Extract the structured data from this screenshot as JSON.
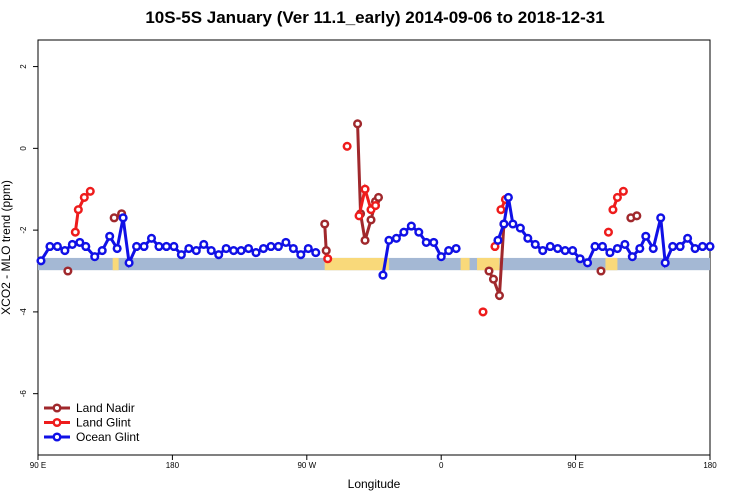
{
  "chart_data": {
    "type": "line",
    "title": "10S-5S January (Ver 11.1_early)   2014-09-06 to 2018-12-31",
    "xlabel": "Longitude",
    "ylabel": "XCO2 - MLO trend (ppm)",
    "x_ticks": [
      {
        "value": 90,
        "label": "90 E"
      },
      {
        "value": 180,
        "label": "180"
      },
      {
        "value": 270,
        "label": "90 W"
      },
      {
        "value": 360,
        "label": "0"
      },
      {
        "value": 450,
        "label": "90 E"
      },
      {
        "value": 540,
        "label": "180"
      }
    ],
    "y_ticks": [
      {
        "value": 2,
        "label": "2"
      },
      {
        "value": 0,
        "label": "0"
      },
      {
        "value": -2,
        "label": "-2"
      },
      {
        "value": -4,
        "label": "-4"
      },
      {
        "value": -6,
        "label": "-6"
      }
    ],
    "xlim": [
      90,
      540
    ],
    "ylim": [
      -7.5,
      2.65
    ],
    "band": {
      "y_top": -2.68,
      "y_bottom": -2.98,
      "color": "#a4b8d4",
      "land_color": "#f9d97a"
    },
    "land_segments": [
      [
        140,
        144
      ],
      [
        282,
        325
      ],
      [
        373,
        379
      ],
      [
        384,
        399
      ],
      [
        470,
        478
      ]
    ],
    "series": [
      {
        "name": "Land Nadir",
        "color": "#a0282c",
        "segments": [
          [
            [
              110,
              -3.0
            ]
          ],
          [
            [
              141,
              -1.7
            ],
            [
              146,
              -1.6
            ]
          ],
          [
            [
              282,
              -1.85
            ],
            [
              283,
              -2.5
            ]
          ],
          [
            [
              304,
              0.6
            ],
            [
              306,
              -1.6
            ],
            [
              309,
              -2.25
            ],
            [
              313,
              -1.75
            ],
            [
              316,
              -1.3
            ],
            [
              318,
              -1.2
            ]
          ],
          [
            [
              392,
              -3.0
            ],
            [
              395,
              -3.2
            ],
            [
              399,
              -3.6
            ],
            [
              402,
              -1.85
            ]
          ],
          [
            [
              467,
              -3.0
            ]
          ],
          [
            [
              487,
              -1.7
            ],
            [
              491,
              -1.65
            ]
          ]
        ]
      },
      {
        "name": "Land Glint",
        "color": "#ee1c1c",
        "segments": [
          [
            [
              115,
              -2.05
            ],
            [
              117,
              -1.5
            ],
            [
              121,
              -1.2
            ],
            [
              125,
              -1.05
            ]
          ],
          [
            [
              284,
              -2.7
            ]
          ],
          [
            [
              297,
              0.05
            ]
          ],
          [
            [
              305,
              -1.65
            ],
            [
              309,
              -1.0
            ],
            [
              313,
              -1.5
            ],
            [
              316,
              -1.4
            ]
          ],
          [
            [
              388,
              -4.0
            ]
          ],
          [
            [
              396,
              -2.4
            ]
          ],
          [
            [
              400,
              -1.5
            ],
            [
              403,
              -1.25
            ]
          ],
          [
            [
              472,
              -2.05
            ]
          ],
          [
            [
              475,
              -1.5
            ],
            [
              478,
              -1.2
            ],
            [
              482,
              -1.05
            ]
          ]
        ]
      },
      {
        "name": "Ocean Glint",
        "color": "#1010e6",
        "segments": [
          [
            [
              92,
              -2.75
            ],
            [
              98,
              -2.4
            ],
            [
              103,
              -2.4
            ],
            [
              108,
              -2.5
            ],
            [
              113,
              -2.35
            ],
            [
              118,
              -2.3
            ],
            [
              122,
              -2.4
            ],
            [
              128,
              -2.65
            ],
            [
              133,
              -2.5
            ],
            [
              138,
              -2.15
            ],
            [
              143,
              -2.45
            ],
            [
              147,
              -1.7
            ],
            [
              151,
              -2.8
            ],
            [
              156,
              -2.4
            ],
            [
              161,
              -2.4
            ],
            [
              166,
              -2.2
            ],
            [
              171,
              -2.4
            ],
            [
              176,
              -2.4
            ],
            [
              181,
              -2.4
            ],
            [
              186,
              -2.6
            ],
            [
              191,
              -2.45
            ],
            [
              196,
              -2.5
            ],
            [
              201,
              -2.35
            ],
            [
              206,
              -2.5
            ],
            [
              211,
              -2.6
            ],
            [
              216,
              -2.45
            ],
            [
              221,
              -2.5
            ],
            [
              226,
              -2.5
            ],
            [
              231,
              -2.45
            ],
            [
              236,
              -2.55
            ],
            [
              241,
              -2.45
            ],
            [
              246,
              -2.4
            ],
            [
              251,
              -2.4
            ],
            [
              256,
              -2.3
            ],
            [
              261,
              -2.45
            ],
            [
              266,
              -2.6
            ],
            [
              271,
              -2.45
            ],
            [
              276,
              -2.55
            ]
          ],
          [
            [
              321,
              -3.1
            ],
            [
              325,
              -2.25
            ],
            [
              330,
              -2.2
            ],
            [
              335,
              -2.05
            ],
            [
              340,
              -1.9
            ],
            [
              345,
              -2.05
            ],
            [
              350,
              -2.3
            ],
            [
              355,
              -2.3
            ],
            [
              360,
              -2.65
            ],
            [
              365,
              -2.5
            ],
            [
              370,
              -2.45
            ]
          ],
          [
            [
              398,
              -2.25
            ],
            [
              402,
              -1.85
            ],
            [
              405,
              -1.2
            ],
            [
              408,
              -1.85
            ],
            [
              413,
              -1.95
            ],
            [
              418,
              -2.2
            ],
            [
              423,
              -2.35
            ],
            [
              428,
              -2.5
            ],
            [
              433,
              -2.4
            ],
            [
              438,
              -2.45
            ],
            [
              443,
              -2.5
            ],
            [
              448,
              -2.5
            ],
            [
              453,
              -2.7
            ],
            [
              458,
              -2.8
            ],
            [
              463,
              -2.4
            ],
            [
              468,
              -2.4
            ],
            [
              473,
              -2.55
            ],
            [
              478,
              -2.45
            ],
            [
              483,
              -2.35
            ],
            [
              488,
              -2.65
            ],
            [
              493,
              -2.45
            ],
            [
              497,
              -2.15
            ],
            [
              502,
              -2.45
            ],
            [
              507,
              -1.7
            ],
            [
              510,
              -2.8
            ],
            [
              515,
              -2.4
            ],
            [
              520,
              -2.4
            ],
            [
              525,
              -2.2
            ],
            [
              530,
              -2.45
            ],
            [
              535,
              -2.4
            ],
            [
              540,
              -2.4
            ]
          ]
        ]
      }
    ],
    "legend": {
      "position": "bottom-left",
      "entries": [
        "Land Nadir",
        "Land Glint",
        "Ocean Glint"
      ]
    }
  }
}
